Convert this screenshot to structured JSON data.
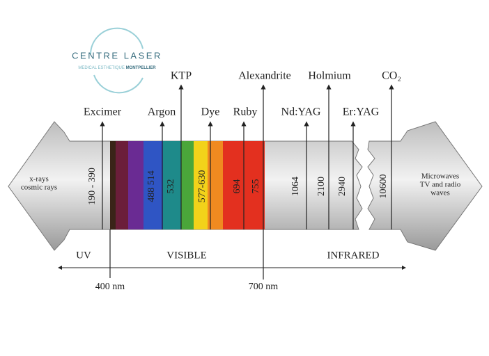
{
  "logo": {
    "name": "CENTRE LASER",
    "subtitle": "MEDICAL ESTHETIQUE",
    "city": "MONTPELLIER"
  },
  "lasers": [
    "Excimer",
    "Argon",
    "KTP",
    "Dye",
    "Ruby",
    "Alexandrite",
    "Nd:YAG",
    "Holmium",
    "Er:YAG",
    "CO₂"
  ],
  "wavelengths": [
    "190 - 390",
    "488  514",
    "532",
    "577-630",
    "694",
    "755",
    "1064",
    "2100",
    "2940",
    "10600"
  ],
  "left_label": [
    "x-rays",
    "cosmic rays"
  ],
  "right_label": [
    "Microwaves",
    "TV and radio",
    "waves"
  ],
  "regions": [
    "UV",
    "VISIBLE",
    "INFRARED"
  ],
  "markers": [
    "400 nm",
    "700 nm"
  ]
}
